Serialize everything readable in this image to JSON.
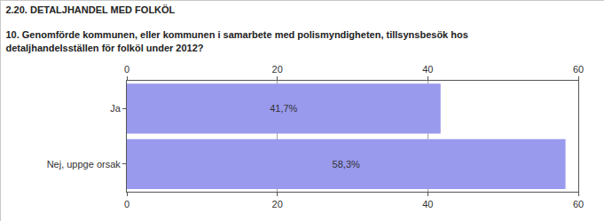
{
  "chart_data": {
    "type": "bar",
    "orientation": "horizontal",
    "title": "2.20. DETALJHANDEL MED FOLKÖL",
    "subtitle": "10. Genomförde kommunen, eller kommunen i samarbete med polismyndigheten, tillsynsbesök hos detaljhandelsställen för folköl under 2012?",
    "categories": [
      "Ja",
      "Nej, uppge orsak"
    ],
    "values": [
      41.7,
      58.3
    ],
    "value_labels": [
      "41,7%",
      "58,3%"
    ],
    "data_labels": true,
    "color": "#9999ee",
    "xlim": [
      0,
      60
    ],
    "xticks": [
      0,
      20,
      40,
      60
    ],
    "grid": true
  }
}
